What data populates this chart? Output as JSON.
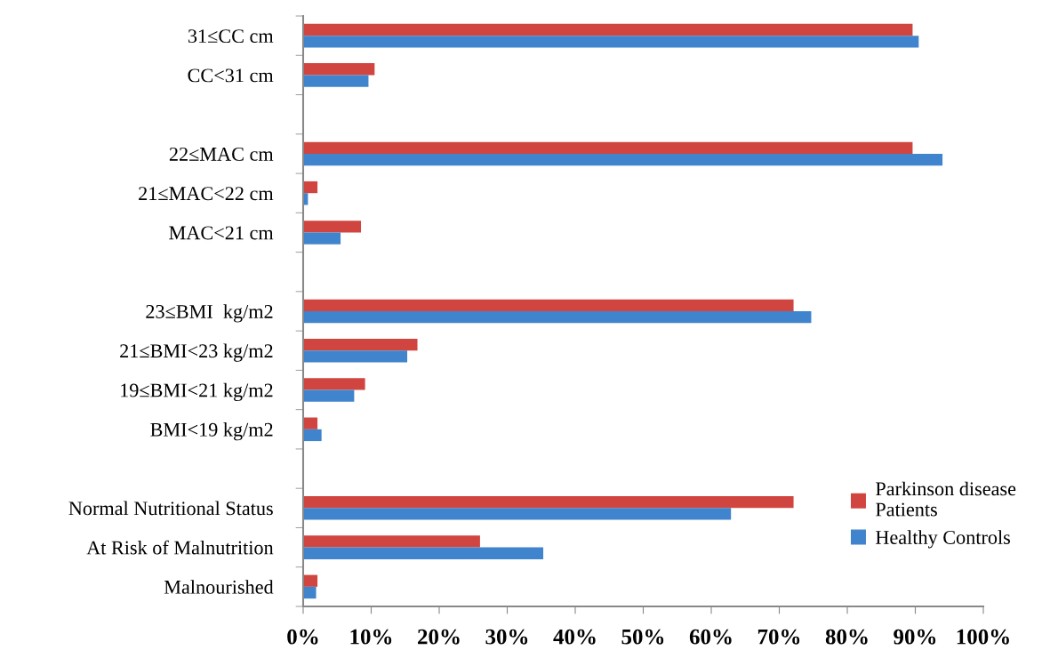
{
  "chart_data": {
    "type": "bar",
    "orientation": "horizontal",
    "categories": [
      "31≤CC cm",
      "CC<31 cm",
      null,
      "22≤MAC cm",
      "21≤MAC<22 cm",
      "MAC<21 cm",
      null,
      "23≤BMI  kg/m2",
      "21≤BMI<23 kg/m2",
      "19≤BMI<21 kg/m2",
      "BMI<19 kg/m2",
      null,
      "Normal Nutritional Status",
      "At Risk of Malnutrition",
      "Malnourished"
    ],
    "series": [
      {
        "name": "Parkinson disease Patients",
        "color": "#d0453f",
        "values": [
          89.6,
          10.5,
          null,
          89.6,
          2.1,
          8.5,
          null,
          72.1,
          16.8,
          9.1,
          2.1,
          null,
          72.1,
          26.0,
          2.1
        ]
      },
      {
        "name": "Healthy Controls",
        "color": "#3f84cc",
        "values": [
          90.5,
          9.6,
          null,
          94.0,
          0.7,
          5.5,
          null,
          74.7,
          15.3,
          7.5,
          2.7,
          null,
          62.9,
          35.3,
          1.9
        ]
      }
    ],
    "xlim": [
      0,
      100
    ],
    "xticks": [
      {
        "value": 0,
        "label": "0%"
      },
      {
        "value": 10,
        "label": "10%"
      },
      {
        "value": 20,
        "label": "20%"
      },
      {
        "value": 30,
        "label": "30%"
      },
      {
        "value": 40,
        "label": "40%"
      },
      {
        "value": 50,
        "label": "50%"
      },
      {
        "value": 60,
        "label": "60%"
      },
      {
        "value": 70,
        "label": "70%"
      },
      {
        "value": 80,
        "label": "80%"
      },
      {
        "value": 90,
        "label": "90%"
      },
      {
        "value": 100,
        "label": "100%"
      }
    ],
    "grid": false,
    "legend": "right"
  }
}
